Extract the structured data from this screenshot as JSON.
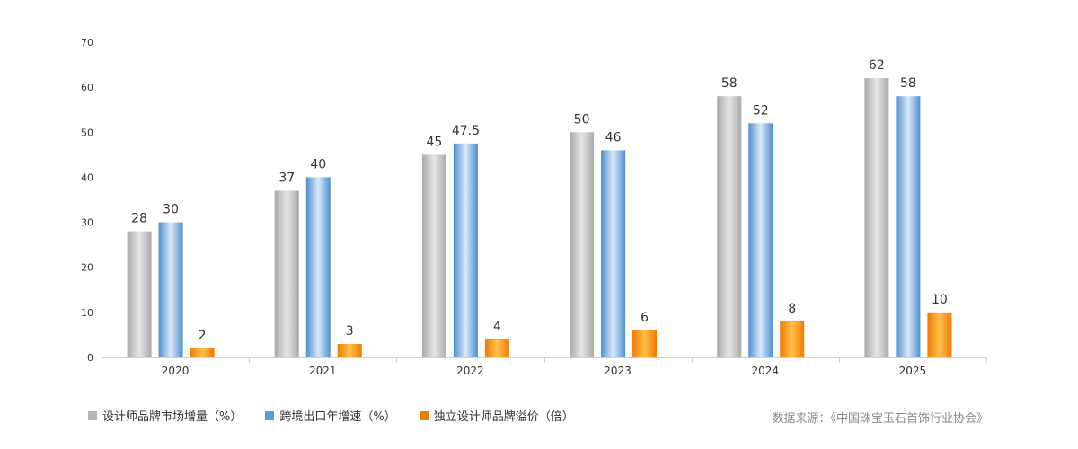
{
  "colors": {
    "series0": "#b5b5b5",
    "series1": "#5b9bd5",
    "series2": "#f07c00"
  },
  "source_text": "数据来源：《中国珠宝玉石首饰行业协会》",
  "chart_data": {
    "type": "bar",
    "categories": [
      "2020",
      "2021",
      "2022",
      "2023",
      "2024",
      "2025"
    ],
    "series": [
      {
        "name": "设计师品牌市场增量（%）",
        "values": [
          28,
          37,
          45,
          50,
          58,
          62
        ]
      },
      {
        "name": "跨境出口年增速（%）",
        "values": [
          30,
          40,
          47.5,
          46,
          52,
          58
        ]
      },
      {
        "name": "独立设计师品牌溢价（倍）",
        "values": [
          2,
          3,
          4,
          6,
          8,
          10
        ]
      }
    ],
    "value_labels": [
      [
        "28",
        "37",
        "45",
        "50",
        "58",
        "62"
      ],
      [
        "30",
        "40",
        "47.5",
        "46",
        "52",
        "58"
      ],
      [
        "2",
        "3",
        "4",
        "6",
        "8",
        "10"
      ]
    ],
    "ylim": [
      0,
      70
    ],
    "yticks": [
      0,
      10,
      20,
      30,
      40,
      50,
      60,
      70
    ],
    "ytick_labels": [
      "0",
      "10",
      "20",
      "30",
      "40",
      "50",
      "60",
      "70"
    ],
    "grid": false,
    "legend_position": "bottom-left"
  }
}
